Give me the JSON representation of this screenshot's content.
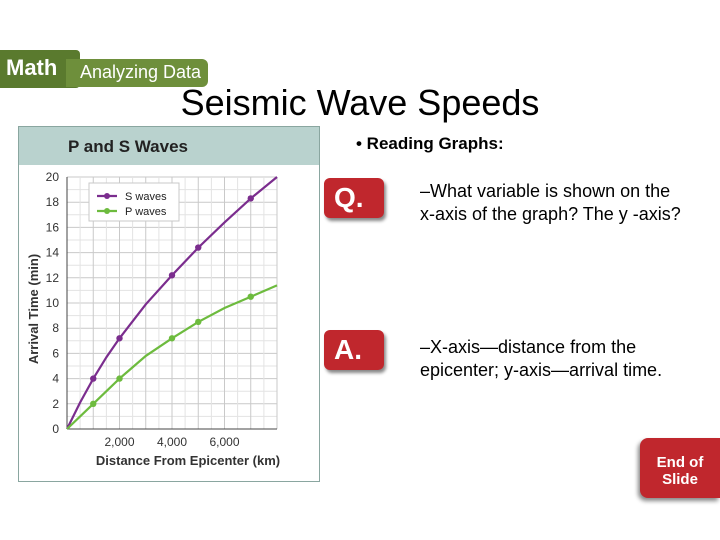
{
  "banner": {
    "tag": "Math",
    "section": "Analyzing Data"
  },
  "slide_title": "Seismic Wave Speeds",
  "reading_heading": "• Reading Graphs:",
  "question": {
    "badge": "Q.",
    "text": "–What variable is shown on the x-axis of the graph? The y -axis?"
  },
  "answer": {
    "badge": "A.",
    "text": "–X-axis—distance from the epicenter; y-axis—arrival time."
  },
  "end_button": {
    "line1": "End of",
    "line2": "Slide"
  },
  "colors": {
    "s_waves": "#7b2d8e",
    "p_waves": "#6dbb3e",
    "header_band": "#b9d2ce",
    "badge_red": "#c0272d",
    "banner_green": "#5a7a2e"
  },
  "chart_data": {
    "type": "line",
    "title": "P and S Waves",
    "xlabel": "Distance From Epicenter (km)",
    "ylabel": "Arrival Time (min)",
    "xlim": [
      0,
      8000
    ],
    "ylim": [
      0,
      20
    ],
    "x_ticks": [
      2000,
      4000,
      6000
    ],
    "x_tick_labels": [
      "2,000",
      "4,000",
      "6,000"
    ],
    "y_ticks": [
      0,
      2,
      4,
      6,
      8,
      10,
      12,
      14,
      16,
      18,
      20
    ],
    "y_tick_labels": [
      "0",
      "2",
      "4",
      "6",
      "8",
      "10",
      "12",
      "14",
      "16",
      "18",
      "20"
    ],
    "grid": true,
    "legend_position": "top-left",
    "series": [
      {
        "name": "S waves",
        "x": [
          1000,
          2000,
          4000,
          5000,
          7000
        ],
        "y": [
          4.0,
          7.2,
          12.2,
          14.4,
          18.3
        ],
        "line": {
          "x": [
            0,
            500,
            1000,
            1500,
            2000,
            3000,
            4000,
            5000,
            6000,
            7000,
            8000
          ],
          "y": [
            0,
            2.1,
            4.0,
            5.7,
            7.2,
            9.9,
            12.2,
            14.4,
            16.4,
            18.3,
            20.0
          ]
        }
      },
      {
        "name": "P waves",
        "x": [
          1000,
          2000,
          4000,
          5000,
          7000
        ],
        "y": [
          2.0,
          4.0,
          7.2,
          8.5,
          10.5
        ],
        "line": {
          "x": [
            0,
            500,
            1000,
            1500,
            2000,
            3000,
            4000,
            5000,
            6000,
            7000,
            8000
          ],
          "y": [
            0,
            1.0,
            2.0,
            3.0,
            4.0,
            5.8,
            7.2,
            8.5,
            9.6,
            10.5,
            11.4
          ]
        }
      }
    ]
  }
}
